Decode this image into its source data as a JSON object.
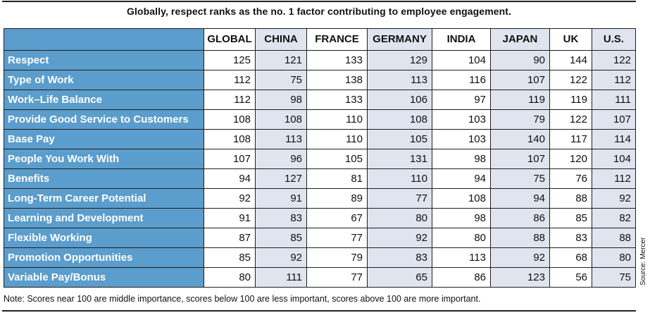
{
  "title": "Globally, respect ranks as the no. 1 factor contributing to employee engagement.",
  "note": "Note: Scores near 100 are middle importance, scores below 100 are less important, scores above 100 are more important.",
  "source": "Source: Mercer",
  "colors": {
    "row_header_bg": "#5b9dcc",
    "shaded_column_bg": "#dfe4ee",
    "border": "#1f1f1f"
  },
  "chart_data": {
    "type": "table",
    "columns": [
      "GLOBAL",
      "CHINA",
      "FRANCE",
      "GERMANY",
      "INDIA",
      "JAPAN",
      "UK",
      "U.S."
    ],
    "shaded_columns": [
      "CHINA",
      "GERMANY",
      "JAPAN",
      "U.S."
    ],
    "rows": [
      {
        "label": "Respect",
        "values": [
          125,
          121,
          133,
          129,
          104,
          90,
          144,
          122
        ]
      },
      {
        "label": "Type of Work",
        "values": [
          112,
          75,
          138,
          113,
          116,
          107,
          122,
          112
        ]
      },
      {
        "label": "Work–Life Balance",
        "values": [
          112,
          98,
          133,
          106,
          97,
          119,
          119,
          111
        ]
      },
      {
        "label": "Provide Good Service to Customers",
        "values": [
          108,
          108,
          110,
          108,
          103,
          79,
          122,
          107
        ]
      },
      {
        "label": "Base Pay",
        "values": [
          108,
          113,
          110,
          105,
          103,
          140,
          117,
          114
        ]
      },
      {
        "label": "People You Work With",
        "values": [
          107,
          96,
          105,
          131,
          98,
          107,
          120,
          104
        ]
      },
      {
        "label": "Benefits",
        "values": [
          94,
          127,
          81,
          110,
          94,
          75,
          76,
          112
        ]
      },
      {
        "label": "Long-Term Career Potential",
        "values": [
          92,
          91,
          89,
          77,
          108,
          94,
          88,
          92
        ]
      },
      {
        "label": "Learning and Development",
        "values": [
          91,
          83,
          67,
          80,
          98,
          86,
          85,
          82
        ]
      },
      {
        "label": "Flexible Working",
        "values": [
          87,
          85,
          77,
          92,
          80,
          88,
          83,
          88
        ]
      },
      {
        "label": "Promotion Opportunities",
        "values": [
          85,
          92,
          79,
          83,
          113,
          92,
          68,
          80
        ]
      },
      {
        "label": "Variable Pay/Bonus",
        "values": [
          80,
          111,
          77,
          65,
          86,
          123,
          56,
          75
        ]
      }
    ]
  }
}
